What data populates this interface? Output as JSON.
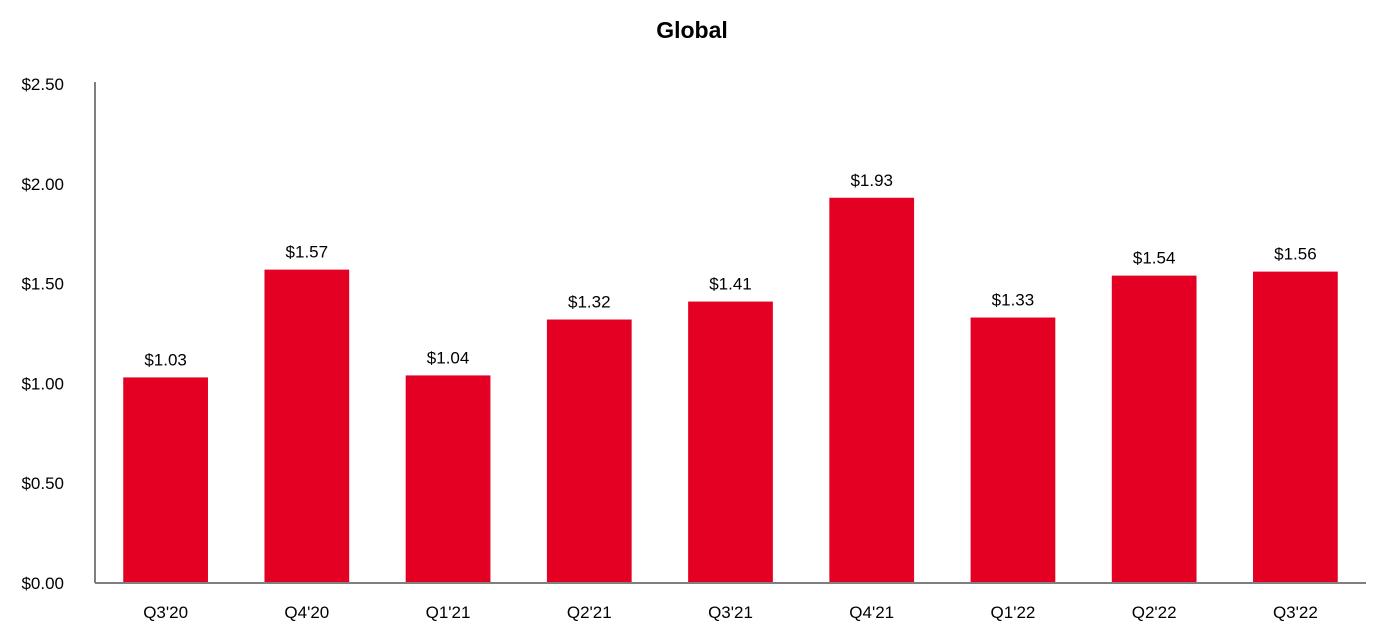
{
  "chart_data": {
    "type": "bar",
    "title": "Global",
    "xlabel": "",
    "ylabel": "",
    "categories": [
      "Q3'20",
      "Q4'20",
      "Q1'21",
      "Q2'21",
      "Q3'21",
      "Q4'21",
      "Q1'22",
      "Q2'22",
      "Q3'22"
    ],
    "values": [
      1.03,
      1.57,
      1.04,
      1.32,
      1.41,
      1.93,
      1.33,
      1.54,
      1.56
    ],
    "data_labels": [
      "$1.03",
      "$1.57",
      "$1.04",
      "$1.32",
      "$1.41",
      "$1.93",
      "$1.33",
      "$1.54",
      "$1.56"
    ],
    "ylim": [
      0,
      2.5
    ],
    "yticks": [
      0,
      0.5,
      1.0,
      1.5,
      2.0,
      2.5
    ],
    "ytick_labels": [
      "$0.00",
      "$0.50",
      "$1.00",
      "$1.50",
      "$2.00",
      "$2.50"
    ],
    "grid": false,
    "legend": "none",
    "bar_color": "#E30022",
    "axis_color": "#7f7f7f"
  }
}
